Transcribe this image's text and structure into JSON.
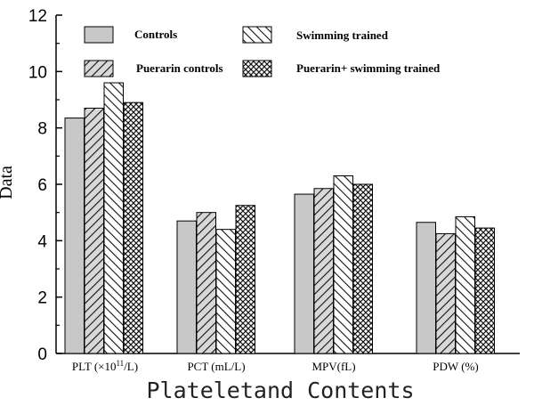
{
  "chart_data": {
    "type": "bar",
    "xlabel": "Plateletand Contents",
    "ylabel": "Data",
    "ylim": [
      0,
      12
    ],
    "yticks": [
      0,
      2,
      4,
      6,
      8,
      10,
      12
    ],
    "categories": [
      {
        "pre": "PLT (×10",
        "sup": "11",
        "post": "/L)"
      },
      {
        "pre": "PCT (mL/L)",
        "sup": "",
        "post": ""
      },
      {
        "pre": "MPV(fL)",
        "sup": "",
        "post": ""
      },
      {
        "pre": "PDW (%)",
        "sup": "",
        "post": ""
      }
    ],
    "series": [
      {
        "name": "Controls",
        "pattern": "solid-gray",
        "values": [
          8.35,
          4.7,
          5.65,
          4.65
        ]
      },
      {
        "name": "Puerarin controls",
        "pattern": "hatch-forward",
        "values": [
          8.7,
          5.0,
          5.85,
          4.25
        ]
      },
      {
        "name": "Swimming trained",
        "pattern": "hatch-backward",
        "values": [
          9.6,
          4.4,
          6.3,
          4.85
        ]
      },
      {
        "name": "Puerarin+ swimming trained",
        "pattern": "crosshatch",
        "values": [
          8.9,
          5.25,
          6.0,
          4.45
        ]
      }
    ],
    "legend_placement": "top, two columns inside plot",
    "grid": false
  }
}
